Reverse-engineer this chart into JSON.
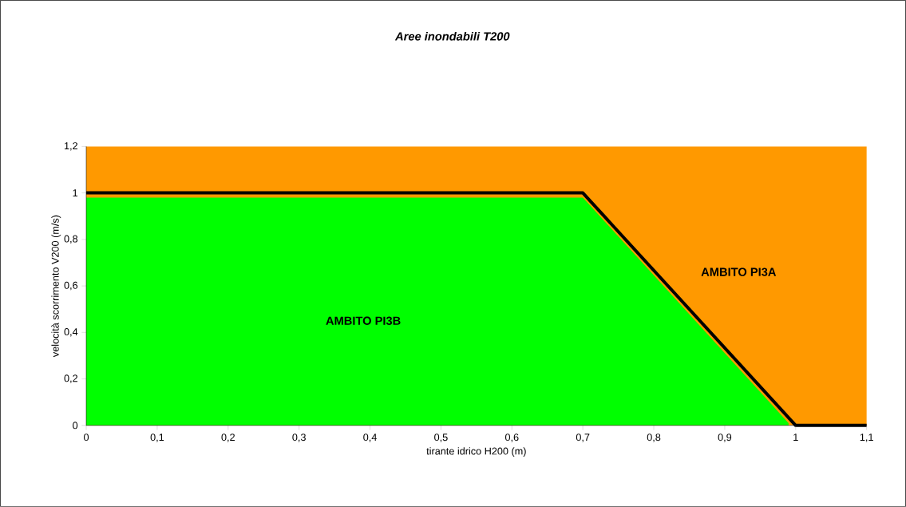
{
  "chart_data": {
    "type": "area",
    "title": "Aree inondabili T200",
    "xlabel": "tirante idrico H200 (m)",
    "ylabel": "velocità scorrimento V200 (m/s)",
    "xlim": [
      0,
      1.1
    ],
    "ylim": [
      0,
      1.2
    ],
    "xticks": [
      0,
      {
        "value": 0.1,
        "label": "0,1"
      },
      {
        "value": 0.2,
        "label": "0,2"
      },
      {
        "value": 0.3,
        "label": "0,3"
      },
      {
        "value": 0.4,
        "label": "0,4"
      },
      {
        "value": 0.5,
        "label": "0,5"
      },
      {
        "value": 0.6,
        "label": "0,6"
      },
      {
        "value": 0.7,
        "label": "0,7"
      },
      {
        "value": 0.8,
        "label": "0,8"
      },
      {
        "value": 0.9,
        "label": "0,9"
      },
      1,
      {
        "value": 1.1,
        "label": "1,1"
      }
    ],
    "yticks": [
      0,
      {
        "value": 0.2,
        "label": "0,2"
      },
      {
        "value": 0.4,
        "label": "0,4"
      },
      {
        "value": 0.6,
        "label": "0,6"
      },
      {
        "value": 0.8,
        "label": "0,8"
      },
      1,
      {
        "value": 1.2,
        "label": "1,2"
      }
    ],
    "series": [
      {
        "color": "#ff9900",
        "x": [
          0,
          1.1
        ],
        "values": [
          1.2,
          1.2
        ]
      },
      {
        "color": "#00ff00",
        "x": [
          0,
          0.7,
          0.99
        ],
        "values": [
          0.98,
          0.98,
          0.01
        ]
      },
      {
        "type": "line",
        "color": "#000000",
        "x": [
          0,
          0.7,
          1.0,
          1.1
        ],
        "values": [
          1,
          1,
          0,
          0
        ]
      }
    ],
    "annotations": [
      "AMBITO PI3B",
      "AMBITO PI3A"
    ]
  }
}
